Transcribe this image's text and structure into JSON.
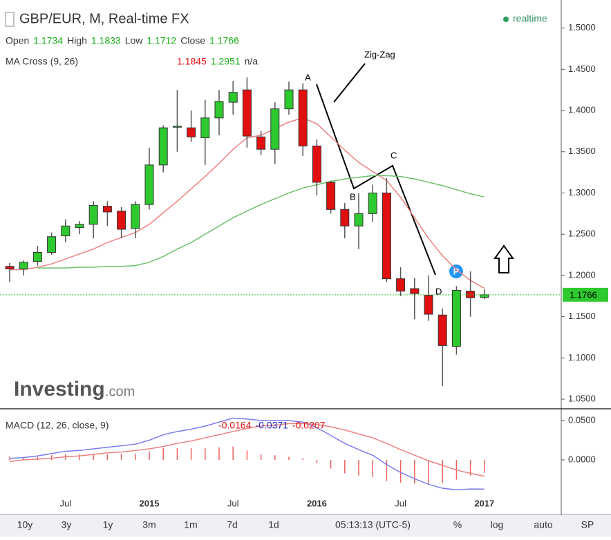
{
  "chart_data": [
    {
      "type": "candlestick",
      "title": "GBP/EUR, M, Real-time FX",
      "status": "realtime",
      "ohlc": [
        {
          "label": "Open",
          "value": 1.1734
        },
        {
          "label": "High",
          "value": 1.1833
        },
        {
          "label": "Low",
          "value": 1.1712
        },
        {
          "label": "Close",
          "value": 1.1766
        }
      ],
      "categories": [
        null,
        null,
        null,
        null,
        "Jul",
        null,
        null,
        null,
        null,
        null,
        "2015",
        null,
        null,
        null,
        null,
        null,
        "Jul",
        null,
        null,
        null,
        null,
        null,
        "2016",
        null,
        null,
        null,
        null,
        null,
        "Jul",
        null,
        null,
        null,
        null,
        null,
        "2017"
      ],
      "open": [
        1.211,
        1.208,
        1.217,
        1.228,
        1.248,
        1.258,
        1.262,
        1.284,
        1.278,
        1.257,
        1.286,
        1.334,
        1.38,
        1.379,
        1.367,
        1.391,
        1.41,
        1.425,
        1.368,
        1.353,
        1.402,
        1.425,
        1.357,
        1.313,
        1.28,
        1.26,
        1.275,
        1.3,
        1.196,
        1.184,
        1.176,
        1.152,
        1.114,
        1.181,
        1.1734
      ],
      "high": [
        1.215,
        1.218,
        1.236,
        1.252,
        1.268,
        1.266,
        1.29,
        1.29,
        1.283,
        1.29,
        1.355,
        1.382,
        1.425,
        1.4,
        1.413,
        1.425,
        1.436,
        1.44,
        1.375,
        1.41,
        1.435,
        1.433,
        1.365,
        1.315,
        1.288,
        1.3,
        1.31,
        1.318,
        1.21,
        1.197,
        1.2,
        1.16,
        1.187,
        1.205,
        1.1833
      ],
      "low": [
        1.192,
        1.2,
        1.212,
        1.225,
        1.24,
        1.25,
        1.245,
        1.26,
        1.245,
        1.245,
        1.28,
        1.325,
        1.35,
        1.362,
        1.334,
        1.37,
        1.395,
        1.355,
        1.346,
        1.335,
        1.395,
        1.345,
        1.297,
        1.275,
        1.245,
        1.232,
        1.265,
        1.192,
        1.175,
        1.147,
        1.145,
        1.066,
        1.104,
        1.15,
        1.1712
      ],
      "close": [
        1.208,
        1.216,
        1.228,
        1.247,
        1.26,
        1.262,
        1.285,
        1.277,
        1.256,
        1.286,
        1.334,
        1.379,
        1.381,
        1.368,
        1.391,
        1.411,
        1.422,
        1.369,
        1.353,
        1.402,
        1.425,
        1.357,
        1.313,
        1.28,
        1.26,
        1.275,
        1.3,
        1.196,
        1.181,
        1.178,
        1.153,
        1.115,
        1.182,
        1.173,
        1.1766
      ],
      "up_color": "#2ec92e",
      "down_color": "#e01010",
      "ylim": [
        1.04,
        1.534
      ],
      "yticks": [
        {
          "value": 1.5,
          "label": "1.5000"
        },
        {
          "value": 1.45,
          "label": "1.4500"
        },
        {
          "value": 1.4,
          "label": "1.4000"
        },
        {
          "value": 1.35,
          "label": "1.3500"
        },
        {
          "value": 1.3,
          "label": "1.3000"
        },
        {
          "value": 1.25,
          "label": "1.2500"
        },
        {
          "value": 1.2,
          "label": "1.2000"
        },
        {
          "value": 1.15,
          "label": "1.1500"
        },
        {
          "value": 1.1,
          "label": "1.1000"
        },
        {
          "value": 1.05,
          "label": "1.0500"
        }
      ],
      "last_price": 1.1766,
      "indicator": {
        "name": "MA Cross (9, 26)",
        "readouts": [
          1.1845,
          1.2951
        ],
        "extra": "n/a",
        "series": [
          {
            "color": "#f08080",
            "values": [
              1.207,
              1.207,
              1.21,
              1.214,
              1.22,
              1.226,
              1.232,
              1.24,
              1.246,
              1.252,
              1.262,
              1.276,
              1.29,
              1.305,
              1.32,
              1.336,
              1.353,
              1.367,
              1.37,
              1.378,
              1.386,
              1.391,
              1.384,
              1.368,
              1.352,
              1.337,
              1.326,
              1.315,
              1.295,
              1.27,
              1.245,
              1.224,
              1.207,
              1.194,
              1.1845
            ]
          },
          {
            "color": "#6abf69",
            "values": [
              null,
              null,
              1.209,
              1.209,
              1.209,
              1.21,
              1.21,
              1.211,
              1.211,
              1.212,
              1.216,
              1.223,
              1.232,
              1.24,
              1.25,
              1.26,
              1.27,
              1.278,
              1.286,
              1.293,
              1.3,
              1.306,
              1.31,
              1.314,
              1.317,
              1.319,
              1.321,
              1.321,
              1.32,
              1.317,
              1.313,
              1.309,
              1.304,
              1.299,
              1.2951
            ]
          }
        ]
      },
      "annotations": {
        "title": "Zig-Zag",
        "points": [
          "A",
          "B",
          "C",
          "D"
        ]
      }
    },
    {
      "type": "line",
      "title": "MACD (12, 26, close, 9)",
      "readouts": [
        {
          "value": -0.0164,
          "color": "#e01010"
        },
        {
          "value": -0.0371,
          "color": "#2020c0"
        },
        {
          "value": -0.0207,
          "color": "#e01010"
        }
      ],
      "histogram": {
        "color": "#f06060",
        "values": [
          0.004,
          0.003,
          0.004,
          0.006,
          0.007,
          0.007,
          0.007,
          0.007,
          0.008,
          0.008,
          0.011,
          0.015,
          0.015,
          0.015,
          0.015,
          0.016,
          0.017,
          0.012,
          0.007,
          0.006,
          0.004,
          0.002,
          -0.004,
          -0.011,
          -0.017,
          -0.02,
          -0.022,
          -0.027,
          -0.029,
          -0.03,
          -0.03,
          -0.029,
          -0.025,
          -0.02,
          -0.0164
        ]
      },
      "series": [
        {
          "color": "#7b7bf0",
          "values": [
            0.002,
            0.003,
            0.005,
            0.008,
            0.011,
            0.012,
            0.014,
            0.016,
            0.018,
            0.02,
            0.025,
            0.032,
            0.036,
            0.039,
            0.043,
            0.048,
            0.053,
            0.052,
            0.05,
            0.05,
            0.05,
            0.048,
            0.041,
            0.031,
            0.021,
            0.013,
            0.006,
            -0.006,
            -0.016,
            -0.024,
            -0.031,
            -0.036,
            -0.038,
            -0.037,
            -0.0371
          ]
        },
        {
          "color": "#f08080",
          "values": [
            -0.002,
            0.0,
            0.001,
            0.002,
            0.004,
            0.005,
            0.007,
            0.009,
            0.01,
            0.012,
            0.014,
            0.017,
            0.021,
            0.024,
            0.028,
            0.032,
            0.036,
            0.04,
            0.043,
            0.044,
            0.046,
            0.046,
            0.045,
            0.042,
            0.038,
            0.033,
            0.028,
            0.021,
            0.013,
            0.006,
            -0.001,
            -0.007,
            -0.013,
            -0.017,
            -0.0207
          ]
        }
      ],
      "ylim": [
        -0.0693,
        0.0649
      ],
      "yticks": [
        {
          "value": 0.05,
          "label": "0.0500"
        },
        {
          "value": 0,
          "label": "0.0000"
        }
      ]
    }
  ],
  "watermark": [
    "Investing",
    ".com"
  ],
  "toolbar": {
    "ranges": [
      "10y",
      "3y",
      "1y",
      "3m",
      "1m",
      "7d",
      "1d"
    ],
    "time": "05:13:13 (UTC-5)",
    "options": [
      "%",
      "log",
      "auto",
      "SP"
    ]
  }
}
